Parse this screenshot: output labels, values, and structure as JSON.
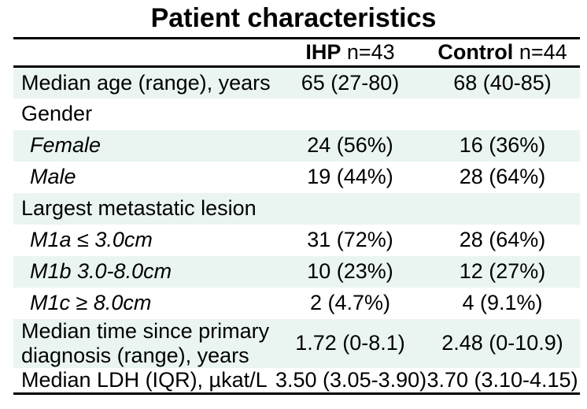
{
  "title": "Patient characteristics",
  "table": {
    "header": {
      "ihp": {
        "bold": "IHP",
        "normal": "n=43"
      },
      "control": {
        "bold": "Control",
        "normal": "n=44"
      }
    },
    "rows": [
      {
        "label": "Median age (range), years",
        "ihp": "65 (27-80)",
        "control": "68 (40-85)"
      },
      {
        "label": "Gender",
        "ihp": "",
        "control": ""
      },
      {
        "label": "Female",
        "ihp": "24 (56%)",
        "control": "16 (36%)"
      },
      {
        "label": "Male",
        "ihp": "19 (44%)",
        "control": "28 (64%)"
      },
      {
        "label": "Largest metastatic lesion",
        "ihp": "",
        "control": ""
      },
      {
        "label": "M1a ≤ 3.0cm",
        "ihp": "31 (72%)",
        "control": "28 (64%)"
      },
      {
        "label": "M1b 3.0-8.0cm",
        "ihp": "10 (23%)",
        "control": "12 (27%)"
      },
      {
        "label": "M1c ≥ 8.0cm",
        "ihp": "2 (4.7%)",
        "control": "4 (9.1%)"
      },
      {
        "label": "Median time since primary diagnosis (range), years",
        "ihp": "1.72 (0-8.1)",
        "control": "2.48 (0-10.9)"
      },
      {
        "label": "Median LDH (IQR), µkat/L",
        "ihp": "3.50 (3.05-3.90)",
        "control": "3.70 (3.10-4.15)"
      }
    ]
  },
  "chart_data": {
    "type": "table",
    "title": "Patient characteristics",
    "columns": [
      "",
      "IHP n=43",
      "Control n=44"
    ],
    "rows": [
      [
        "Median age (range), years",
        "65 (27-80)",
        "68 (40-85)"
      ],
      [
        "Gender",
        "",
        ""
      ],
      [
        "Female",
        "24 (56%)",
        "16 (36%)"
      ],
      [
        "Male",
        "19 (44%)",
        "28 (64%)"
      ],
      [
        "Largest metastatic lesion",
        "",
        ""
      ],
      [
        "M1a ≤ 3.0cm",
        "31 (72%)",
        "28 (64%)"
      ],
      [
        "M1b 3.0-8.0cm",
        "10 (23%)",
        "12 (27%)"
      ],
      [
        "M1c ≥ 8.0cm",
        "2 (4.7%)",
        "4 (9.1%)"
      ],
      [
        "Median time since primary diagnosis (range), years",
        "1.72 (0-8.1)",
        "2.48 (0-10.9)"
      ],
      [
        "Median LDH (IQR), µkat/L",
        "3.50 (3.05-3.90)",
        "3.70 (3.10-4.15)"
      ]
    ]
  },
  "colors": {
    "shaded_row": "#eaf5f2",
    "rule": "#000000",
    "text": "#000000"
  }
}
